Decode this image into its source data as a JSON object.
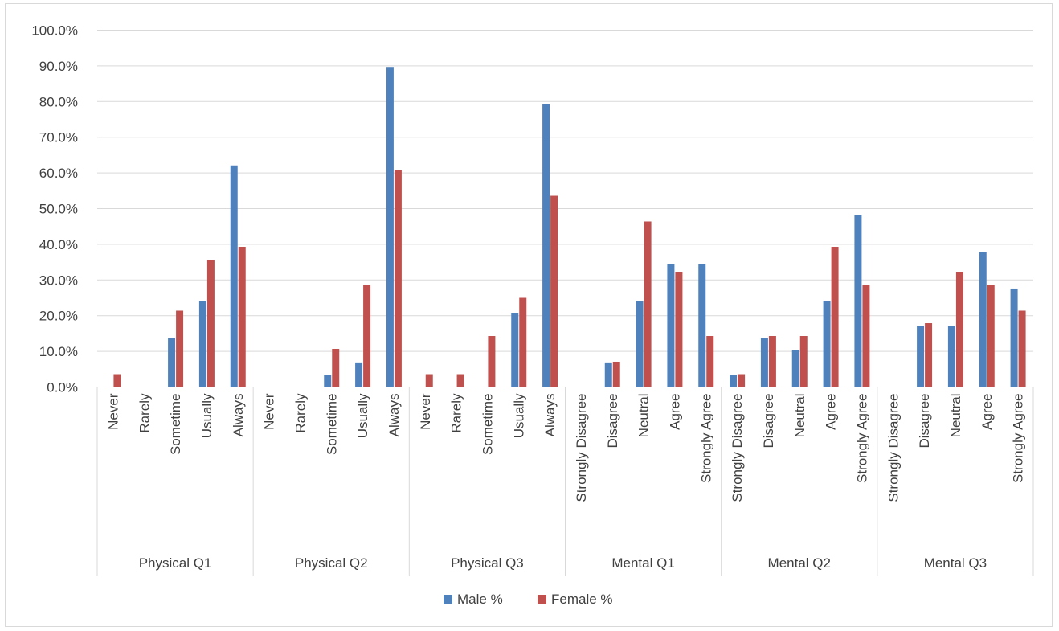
{
  "chart_data": {
    "type": "bar",
    "title": "",
    "xlabel": "",
    "ylabel": "",
    "ylim": [
      0,
      100
    ],
    "ytick_step": 10,
    "grid": true,
    "legend_position": "bottom",
    "groups": [
      {
        "name": "Physical Q1",
        "categories": [
          "Never",
          "Rarely",
          "Sometime",
          "Usually",
          "Always"
        ]
      },
      {
        "name": "Physical Q2",
        "categories": [
          "Never",
          "Rarely",
          "Sometime",
          "Usually",
          "Always"
        ]
      },
      {
        "name": "Physical Q3",
        "categories": [
          "Never",
          "Rarely",
          "Sometime",
          "Usually",
          "Always"
        ]
      },
      {
        "name": "Mental Q1",
        "categories": [
          "Strongly Disagree",
          "Disagree",
          "Neutral",
          "Agree",
          "Strongly Agree"
        ]
      },
      {
        "name": "Mental Q2",
        "categories": [
          "Strongly Disagree",
          "Disagree",
          "Neutral",
          "Agree",
          "Strongly Agree"
        ]
      },
      {
        "name": "Mental Q3",
        "categories": [
          "Strongly Disagree",
          "Disagree",
          "Neutral",
          "Agree",
          "Strongly Agree"
        ]
      }
    ],
    "series": [
      {
        "name": "Male  %",
        "color": "#4f81bd",
        "values": [
          0,
          0,
          13.8,
          24.1,
          62.1,
          0,
          0,
          3.4,
          6.9,
          89.7,
          0,
          0,
          0,
          20.7,
          79.3,
          0,
          6.9,
          24.1,
          34.5,
          34.5,
          3.4,
          13.8,
          10.3,
          24.1,
          48.3,
          0,
          17.2,
          17.2,
          37.9,
          27.6
        ]
      },
      {
        "name": "Female %",
        "color": "#c0504d",
        "values": [
          3.6,
          0,
          21.4,
          35.7,
          39.3,
          0,
          0,
          10.7,
          28.6,
          60.7,
          3.6,
          3.6,
          14.3,
          25.0,
          53.6,
          0,
          7.1,
          46.4,
          32.1,
          14.3,
          3.6,
          14.3,
          14.3,
          39.3,
          28.6,
          0,
          17.9,
          32.1,
          28.6,
          21.4
        ]
      }
    ]
  }
}
